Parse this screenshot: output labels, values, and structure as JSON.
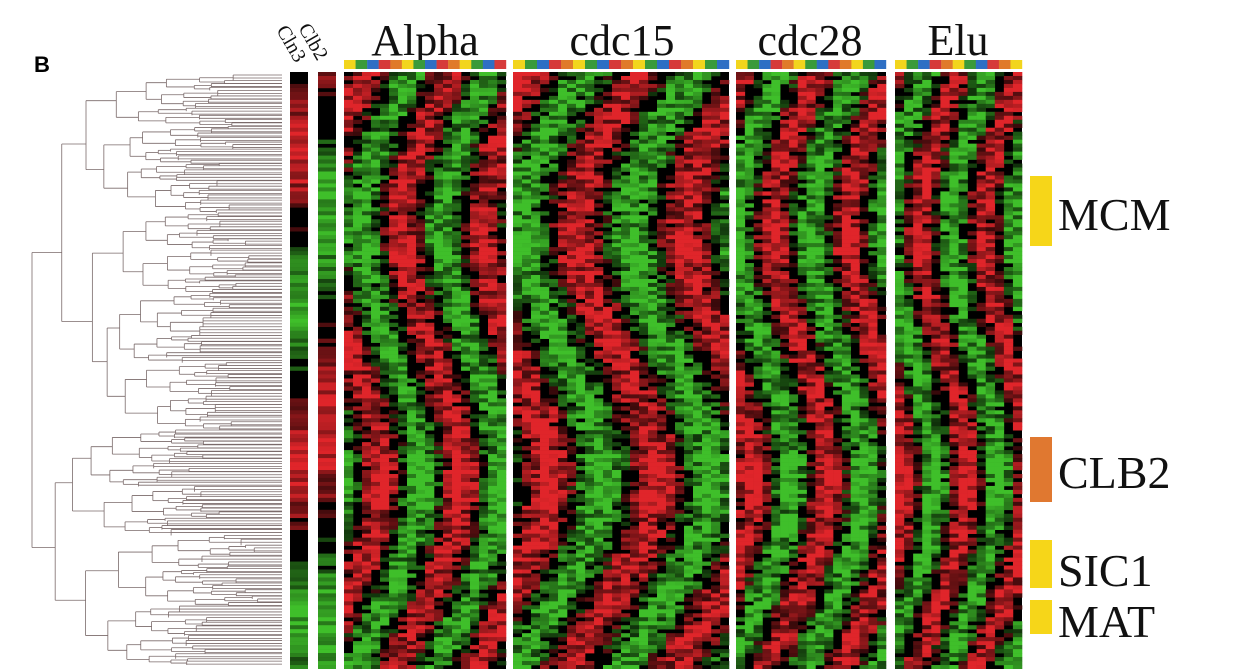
{
  "chart_data": {
    "type": "heatmap",
    "panel_label": "B",
    "experiments": [
      "Alpha",
      "cdc15",
      "cdc28",
      "Elu"
    ],
    "reference_columns": [
      "Cln3",
      "Clb2"
    ],
    "color_scale": {
      "low": "#3fbf2a",
      "mid": "#000000",
      "high": "#e0252a"
    },
    "phase_colors": [
      "#f2d51d",
      "#3a9a3a",
      "#2e6fc4",
      "#d63a3a",
      "#e07a2a"
    ],
    "clusters": [
      {
        "name": "MCM",
        "color": "#f6d619"
      },
      {
        "name": "CLB2",
        "color": "#e07830"
      },
      {
        "name": "SIC1",
        "color": "#f6d619"
      },
      {
        "name": "MAT",
        "color": "#f6d619"
      }
    ],
    "dendrogram": true
  }
}
